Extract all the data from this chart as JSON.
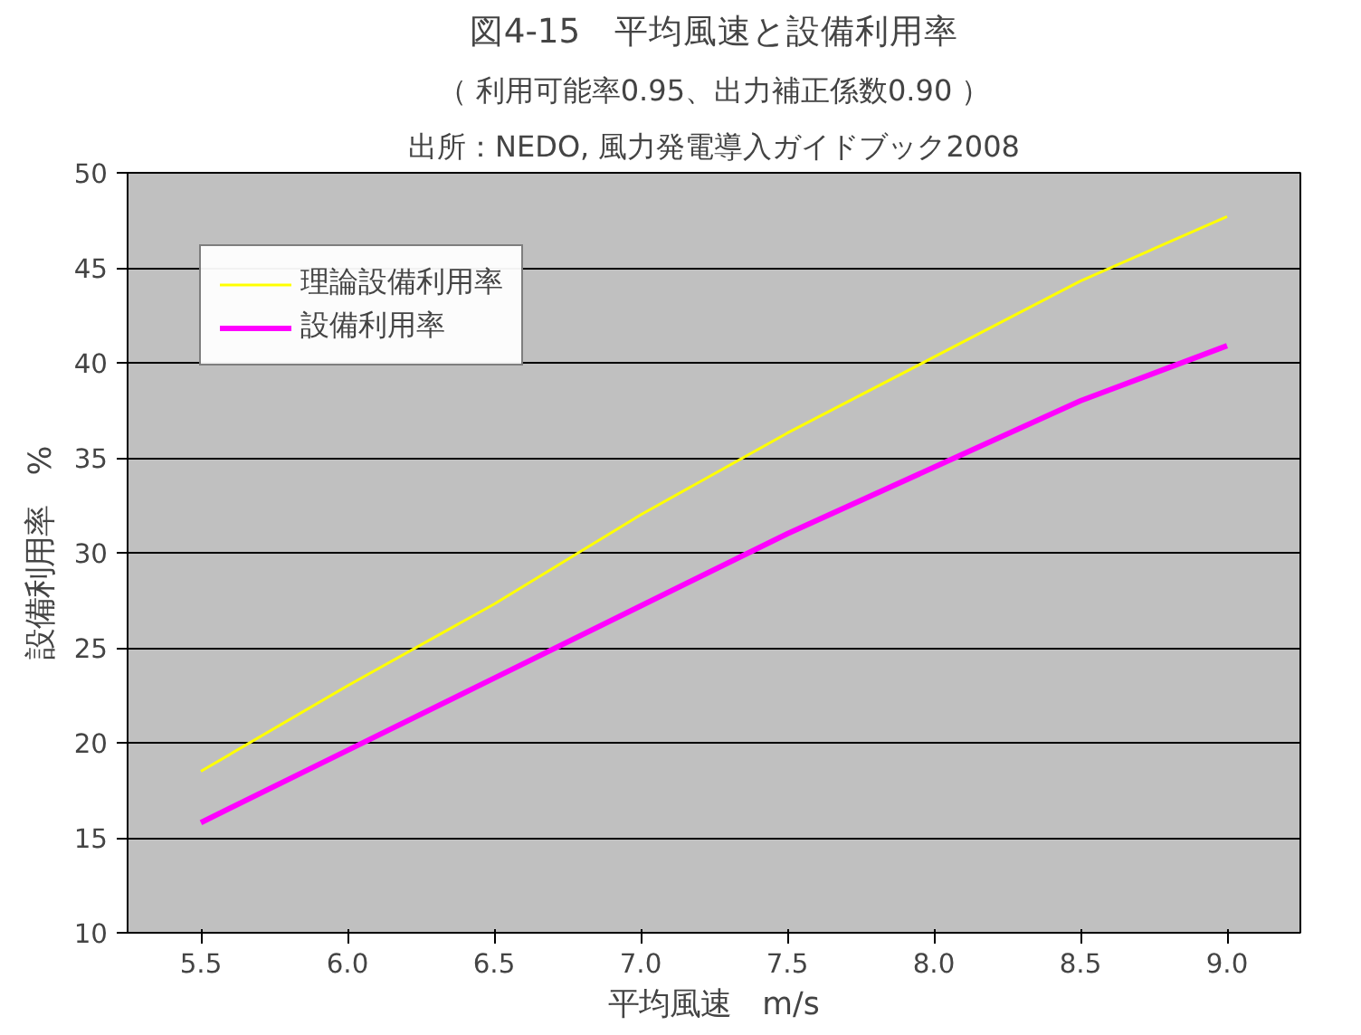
{
  "chart_data": {
    "type": "line",
    "title": "図4-15　平均風速と設備利用率",
    "subtitle": "（ 利用可能率0.95、出力補正係数0.90 ）",
    "annotations": [
      "出所：NEDO, 風力発電導入ガイドブック2008"
    ],
    "xlabel": "平均風速　m/s",
    "ylabel": "設備利用率　%",
    "categories": [
      "5.5",
      "6.0",
      "6.5",
      "7.0",
      "7.5",
      "8.0",
      "8.5",
      "9.0"
    ],
    "series": [
      {
        "name": "理論設備利用率",
        "color": "#ffff00",
        "values": [
          18.5,
          23.0,
          27.3,
          32.0,
          36.3,
          40.3,
          44.3,
          47.7
        ]
      },
      {
        "name": "設備利用率",
        "color": "#ff00ff",
        "values": [
          15.8,
          19.6,
          23.4,
          27.2,
          31.0,
          34.5,
          38.0,
          40.9
        ]
      }
    ],
    "ylim": [
      10,
      50
    ],
    "yticks": [
      10,
      15,
      20,
      25,
      30,
      35,
      40,
      45,
      50
    ],
    "grid": "y",
    "legend": "top left",
    "marker": "none"
  }
}
